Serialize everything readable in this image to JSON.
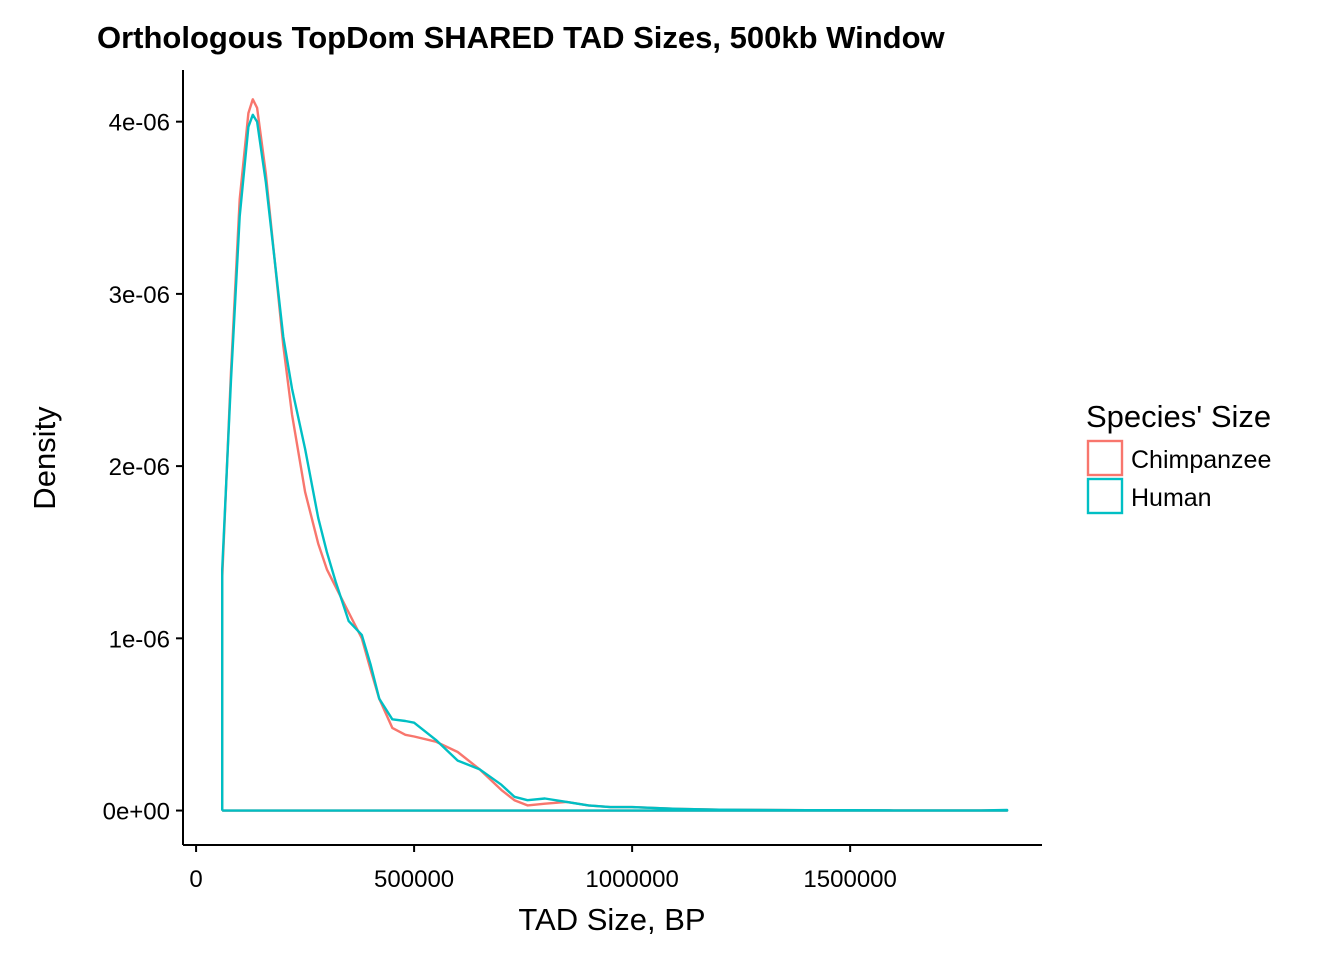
{
  "chart_data": {
    "type": "line",
    "title": "Orthologous TopDom SHARED TAD Sizes, 500kb Window",
    "xlabel": "TAD Size, BP",
    "ylabel": "Density",
    "xlim": [
      -30000,
      1940000
    ],
    "ylim": [
      -2e-07,
      4.3e-06
    ],
    "x_ticks": [
      {
        "value": 0,
        "label": "0"
      },
      {
        "value": 500000,
        "label": "500000"
      },
      {
        "value": 1000000,
        "label": "1000000"
      },
      {
        "value": 1500000,
        "label": "1500000"
      }
    ],
    "y_ticks": [
      {
        "value": 0,
        "label": "0e+00"
      },
      {
        "value": 1e-06,
        "label": "1e-06"
      },
      {
        "value": 2e-06,
        "label": "2e-06"
      },
      {
        "value": 3e-06,
        "label": "3e-06"
      },
      {
        "value": 4e-06,
        "label": "4e-06"
      }
    ],
    "grid": false,
    "legend": {
      "title": "Species' Size",
      "position": "right"
    },
    "series": [
      {
        "name": "Chimpanzee",
        "color": "#F8766D",
        "x": [
          60000,
          60000,
          80000,
          100000,
          120000,
          130000,
          140000,
          160000,
          180000,
          200000,
          220000,
          250000,
          280000,
          300000,
          320000,
          350000,
          380000,
          400000,
          420000,
          450000,
          480000,
          500000,
          550000,
          600000,
          650000,
          700000,
          730000,
          760000,
          800000,
          850000,
          900000,
          950000,
          1000000,
          1100000,
          1200000,
          1300000,
          1400000,
          1500000,
          1600000,
          1700000,
          1800000,
          1860000,
          1860000,
          60000
        ],
        "y": [
          0,
          1.35e-06,
          2.55e-06,
          3.55e-06,
          4.05e-06,
          4.13e-06,
          4.08e-06,
          3.7e-06,
          3.2e-06,
          2.7e-06,
          2.3e-06,
          1.85e-06,
          1.55e-06,
          1.4e-06,
          1.3e-06,
          1.15e-06,
          1e-06,
          8.2e-07,
          6.5e-07,
          4.8e-07,
          4.4e-07,
          4.3e-07,
          4e-07,
          3.4e-07,
          2.4e-07,
          1.2e-07,
          6e-08,
          3e-08,
          4e-08,
          5e-08,
          3e-08,
          2e-08,
          2e-08,
          1e-08,
          5e-09,
          3e-09,
          2e-09,
          2e-09,
          1e-09,
          1e-09,
          1e-09,
          2e-09,
          0,
          0
        ]
      },
      {
        "name": "Human",
        "color": "#00BFC4",
        "x": [
          60000,
          60000,
          80000,
          100000,
          120000,
          130000,
          140000,
          160000,
          180000,
          200000,
          220000,
          250000,
          280000,
          300000,
          320000,
          350000,
          380000,
          400000,
          420000,
          450000,
          480000,
          500000,
          550000,
          600000,
          650000,
          700000,
          730000,
          760000,
          800000,
          850000,
          900000,
          950000,
          1000000,
          1100000,
          1200000,
          1300000,
          1400000,
          1500000,
          1600000,
          1700000,
          1800000,
          1860000,
          1860000,
          60000
        ],
        "y": [
          0,
          1.4e-06,
          2.5e-06,
          3.45e-06,
          3.97e-06,
          4.04e-06,
          4e-06,
          3.65e-06,
          3.2e-06,
          2.75e-06,
          2.45e-06,
          2.1e-06,
          1.7e-06,
          1.5e-06,
          1.33e-06,
          1.1e-06,
          1.02e-06,
          8.5e-07,
          6.5e-07,
          5.3e-07,
          5.2e-07,
          5.1e-07,
          4.1e-07,
          2.9e-07,
          2.4e-07,
          1.5e-07,
          8e-08,
          6e-08,
          7e-08,
          5e-08,
          3e-08,
          2e-08,
          2e-08,
          1e-08,
          5e-09,
          4e-09,
          2e-09,
          2e-09,
          1e-09,
          1e-09,
          1e-09,
          3e-09,
          0,
          0
        ]
      }
    ]
  }
}
